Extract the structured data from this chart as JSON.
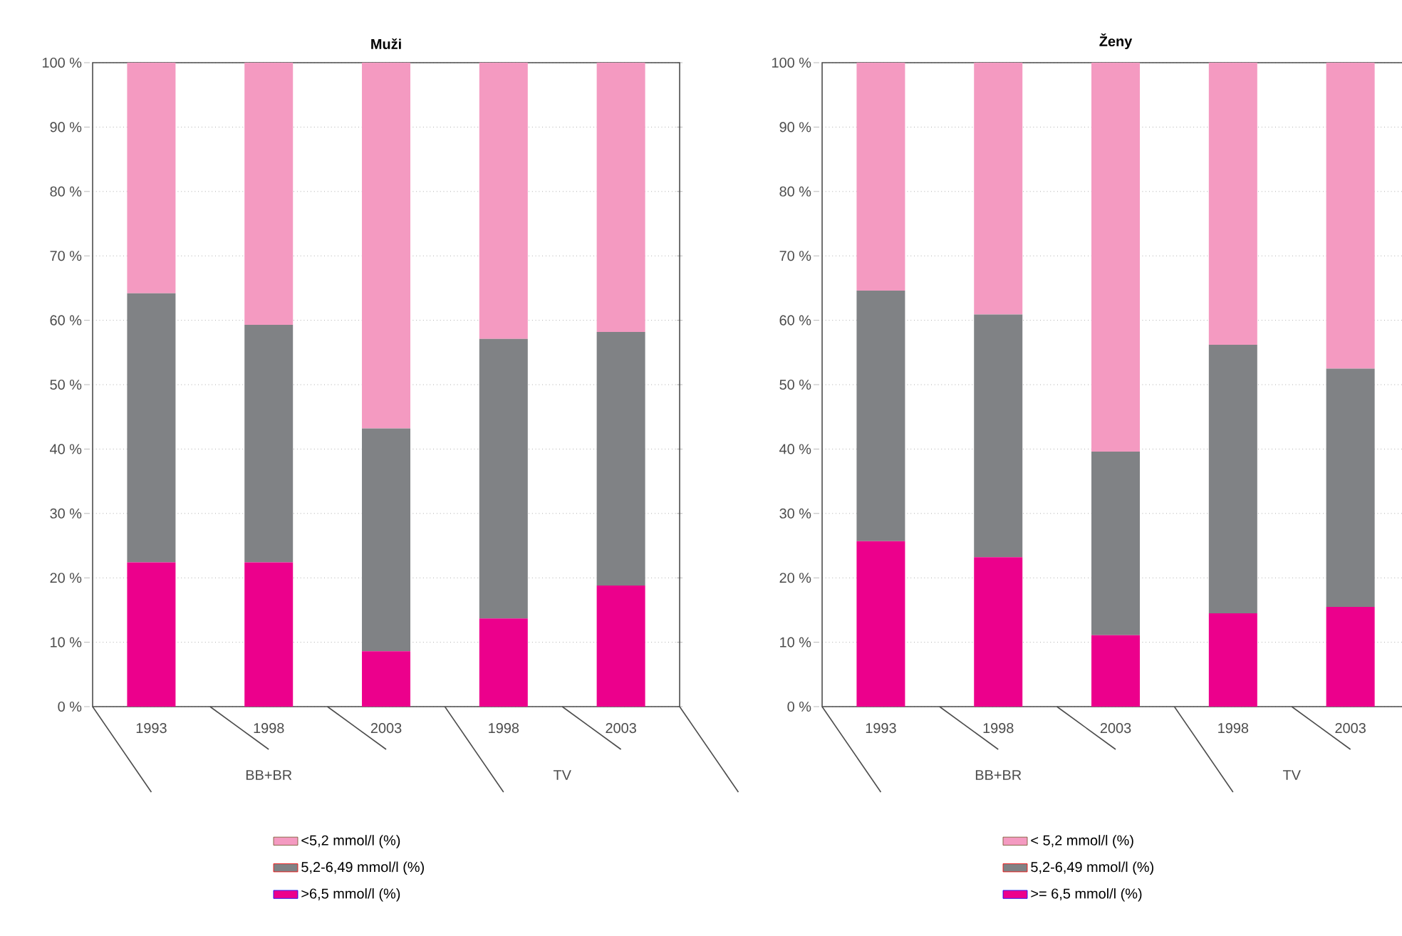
{
  "chart_data": [
    {
      "type": "bar",
      "stacked": true,
      "title": "Muži",
      "categories": [
        "1993",
        "1998",
        "2003",
        "1998",
        "2003"
      ],
      "series": [
        {
          "name": ">6,5 mmol/l (%)",
          "color": "#ec008c",
          "values": [
            22.4,
            22.4,
            8.6,
            13.7,
            18.8
          ]
        },
        {
          "name": "5,2-6,49 mmol/l (%)",
          "color": "#808285",
          "values": [
            41.8,
            36.9,
            34.6,
            43.4,
            39.4
          ]
        },
        {
          "name": "<5,2 mmol/l (%)",
          "color": "#f49ac1",
          "values": [
            35.8,
            40.7,
            56.8,
            42.9,
            41.8
          ]
        }
      ],
      "ylim": [
        0,
        100
      ],
      "yticks": [
        {
          "value": 0,
          "label": "0 %"
        },
        {
          "value": 10,
          "label": "10 %"
        },
        {
          "value": 20,
          "label": "20 %"
        },
        {
          "value": 30,
          "label": "30 %"
        },
        {
          "value": 40,
          "label": "40 %"
        },
        {
          "value": 50,
          "label": "50 %"
        },
        {
          "value": 60,
          "label": "60 %"
        },
        {
          "value": 70,
          "label": "70 %"
        },
        {
          "value": 80,
          "label": "80 %"
        },
        {
          "value": 90,
          "label": "90 %"
        },
        {
          "value": 100,
          "label": "100 %"
        }
      ],
      "grid": "y",
      "legend": "bottom",
      "annotations": [
        "BB+BR",
        "TV"
      ]
    },
    {
      "type": "bar",
      "stacked": true,
      "title": "Ženy",
      "categories": [
        "1993",
        "1998",
        "2003",
        "1998",
        "2003"
      ],
      "series": [
        {
          "name": ">= 6,5 mmol/l (%)",
          "color": "#ec008c",
          "values": [
            25.7,
            23.2,
            11.1,
            14.5,
            15.5
          ]
        },
        {
          "name": "5,2-6,49 mmol/l (%)",
          "color": "#808285",
          "values": [
            38.9,
            37.7,
            28.5,
            41.7,
            37.0
          ]
        },
        {
          "name": "< 5,2 mmol/l (%)",
          "color": "#f49ac1",
          "values": [
            35.4,
            39.1,
            60.4,
            43.8,
            47.5
          ]
        }
      ],
      "ylim": [
        0,
        100
      ],
      "yticks": [
        {
          "value": 0,
          "label": "0 %"
        },
        {
          "value": 10,
          "label": "10 %"
        },
        {
          "value": 20,
          "label": "20 %"
        },
        {
          "value": 30,
          "label": "30 %"
        },
        {
          "value": 40,
          "label": "40 %"
        },
        {
          "value": 50,
          "label": "50 %"
        },
        {
          "value": 60,
          "label": "60 %"
        },
        {
          "value": 70,
          "label": "70 %"
        },
        {
          "value": 80,
          "label": "80 %"
        },
        {
          "value": 90,
          "label": "90 %"
        },
        {
          "value": 100,
          "label": "100 %"
        }
      ],
      "grid": "y",
      "legend": "bottom",
      "annotations": [
        "BB+BR",
        "TV"
      ]
    }
  ]
}
